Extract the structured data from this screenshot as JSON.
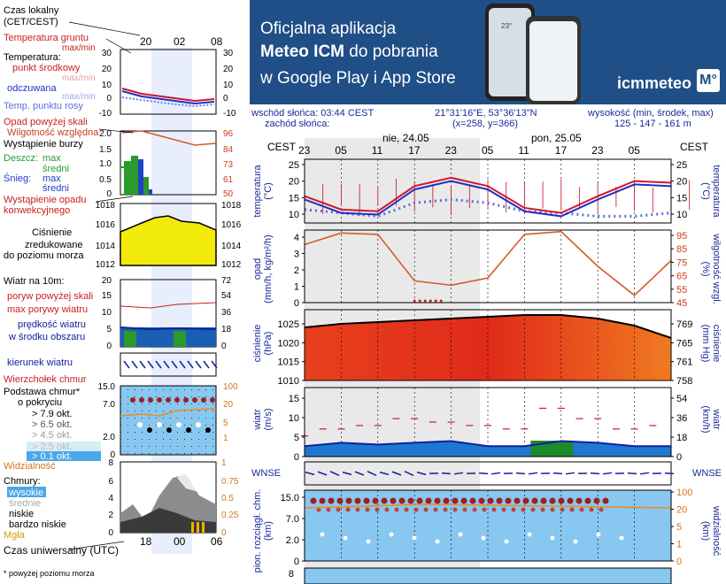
{
  "banner": {
    "line1": "Oficjalna aplikacja",
    "line2_bold": "Meteo ICM",
    "line2_rest": " do pobrania",
    "line3": "w Google Play i App Store",
    "logo": "icmmeteo",
    "logo_mark": "M°",
    "phone_text": "23°"
  },
  "info": {
    "sunrise": "wschód słońca: 03:44 CEST",
    "sunset": "zachód słońca:",
    "coords": "21°31'16\"E, 53°36'13\"N",
    "grid": "(x=258,  y=366)",
    "elevation_label": "wysokość (min, środek, max)",
    "elevation_values": "125 - 147 - 161 m"
  },
  "legend": {
    "local_time": "Czas lokalny",
    "local_time_2": "(CET/CEST)",
    "ground_temp": "Temperatura gruntu",
    "maxmin": "max/min",
    "temperature": "Temperatura:",
    "mid_point": "punkt środkowy",
    "maxmin2": "max/min",
    "felt": "odczuwana",
    "maxmin3": "max/min",
    "dew_point": "Temp. punktu rosy",
    "precip_above": "Opad powyżej skali",
    "humidity": "Wilgotność względna",
    "storm": "Wystąpienie burzy",
    "rain": "Deszcz:",
    "max": "max",
    "mean": "średni",
    "snow": "Śnieg:",
    "max2": "max",
    "mean2": "średni",
    "conv_precip": "Wystąpienie opadu",
    "conv_precip_2": "konwekcyjnego",
    "pressure": "Ciśnienie",
    "pressure_2": "zredukowane",
    "pressure_3": "do poziomu morza",
    "wind": "Wiatr na 10m:",
    "gusts_above": "poryw powyżej skali",
    "max_gusts": "max porywy wiatru",
    "wind_speed": "prędkość wiatru",
    "wind_speed_2": "w środku obszaru",
    "wind_dir": "kierunek wiatru",
    "cloud_top": "Wierzchołek chmur",
    "cloud_base": "Podstawa chmur*",
    "cloud_base_2": "o pokryciu",
    "okt79": "> 7.9 okt.",
    "okt65": "> 6.5 okt.",
    "okt45": "> 4.5 okt.",
    "okt25": "> 2.5 okt.",
    "okt01": "> 0.1 okt.",
    "visibility": "Widzialność",
    "clouds": "Chmury:",
    "high": "wysokie",
    "medium": "średnie",
    "low": "niskie",
    "very_low": "bardzo niskie",
    "fog": "Mgła",
    "utc": "Czas uniwersalny (UTC)",
    "footnote": "* powyżej poziomu morza"
  },
  "left_axes": {
    "top_ticks": [
      "20",
      "02",
      "08"
    ],
    "bottom_ticks": [
      "18",
      "00",
      "06"
    ],
    "temp": [
      "30",
      "20",
      "10",
      "0",
      "-10"
    ],
    "precip": [
      "2.0",
      "1.5",
      "1.0",
      "0.5",
      "0"
    ],
    "humidity": [
      "96",
      "84",
      "73",
      "61",
      "50"
    ],
    "pressure": [
      "1018",
      "1016",
      "1014",
      "1012"
    ],
    "wind_ms": [
      "20",
      "15",
      "10",
      "5",
      "0"
    ],
    "wind_kmh": [
      "72",
      "54",
      "36",
      "18",
      "0"
    ],
    "cloud_km": [
      "15.0",
      "7.0",
      "2.0",
      "0"
    ],
    "vis_km": [
      "100",
      "20",
      "5",
      "1"
    ],
    "cloud_frac_left": [
      "8",
      "6",
      "4",
      "2",
      "0"
    ],
    "cloud_frac_right": [
      "1",
      "0.75",
      "0.5",
      "0.25",
      "0"
    ]
  },
  "right_axes": {
    "cest": "CEST",
    "day1": "nie, 24.05",
    "day2": "pon, 25.05",
    "hours": [
      "23",
      "05",
      "11",
      "17",
      "23",
      "05",
      "11",
      "17",
      "23",
      "05"
    ],
    "temp_label": "temperatura",
    "temp_unit": "(°C)",
    "temp_ticks": [
      "25",
      "20",
      "15",
      "10"
    ],
    "precip_label": "opad",
    "precip_unit": "(mm/h, kg/m²/h)",
    "precip_ticks": [
      "4",
      "3",
      "2",
      "1",
      "0"
    ],
    "hum_label": "wilgotność wzgl.",
    "hum_unit": "(%)",
    "hum_ticks": [
      "95",
      "85",
      "75",
      "65",
      "55",
      "45"
    ],
    "press_label": "ciśnienie",
    "press_unit": "(hPa)",
    "press_unit2": "(mm Hg)",
    "press_ticks": [
      "1025",
      "1020",
      "1015",
      "1010"
    ],
    "press_mmhg_ticks": [
      "769",
      "765",
      "761",
      "758"
    ],
    "wind_label": "wiatr",
    "wind_unit": "(m/s)",
    "wind_unit2": "(km/h)",
    "wind_ticks": [
      "15",
      "10",
      "5",
      "0"
    ],
    "wind_kmh_ticks": [
      "54",
      "36",
      "18",
      "0"
    ],
    "compass": "WNSE",
    "cloud_label": "pion. rozciągł. chm.",
    "cloud_unit": "(km)",
    "vis_label": "widzialność",
    "cloud_ticks": [
      "15.0",
      "7.0",
      "2.0",
      "0"
    ],
    "vis_ticks": [
      "100",
      "20",
      "5",
      "1",
      "0"
    ],
    "bottom_tick": "8"
  },
  "chart_data": [
    {
      "type": "line",
      "name": "temperature",
      "x": [
        0,
        6,
        12,
        18,
        24,
        30,
        36,
        42,
        48,
        54,
        60
      ],
      "series": [
        {
          "name": "punkt środkowy",
          "color": "#d3142a",
          "values": [
            16,
            12,
            11.5,
            19,
            21.5,
            19,
            12.5,
            11,
            16,
            20.5,
            20
          ]
        },
        {
          "name": "odczuwana",
          "color": "#2030c8",
          "values": [
            15,
            11,
            10.5,
            18,
            20.5,
            18,
            11.5,
            10,
            15,
            19.5,
            19
          ]
        },
        {
          "name": "Temp. punktu rosy",
          "color": "#5a6fd8",
          "values": [
            12,
            11,
            10,
            14,
            15,
            14,
            11.5,
            11,
            10,
            10,
            11
          ]
        }
      ],
      "ylim": [
        8,
        27
      ]
    },
    {
      "type": "line",
      "name": "humidity",
      "x": [
        0,
        6,
        12,
        18,
        24,
        30,
        36,
        42,
        48,
        54,
        60
      ],
      "series": [
        {
          "name": "wilgotność",
          "color": "#d8582a",
          "values": [
            85,
            93,
            92,
            60,
            57,
            62,
            92,
            94,
            70,
            50,
            74
          ]
        }
      ],
      "ylim": [
        45,
        95
      ]
    },
    {
      "type": "area",
      "name": "pressure",
      "x": [
        0,
        6,
        12,
        18,
        24,
        30,
        36,
        42,
        48,
        54,
        60
      ],
      "series": [
        {
          "name": "ciśnienie",
          "values": [
            1025,
            1026,
            1026.5,
            1027,
            1027.5,
            1028,
            1028.5,
            1028.5,
            1027.5,
            1025.5,
            1022
          ]
        }
      ],
      "ylim": [
        1010,
        1030
      ]
    },
    {
      "type": "line",
      "name": "wind",
      "x": [
        0,
        6,
        12,
        18,
        24,
        30,
        36,
        42,
        48,
        54,
        60
      ],
      "series": [
        {
          "name": "prędkość wiatru",
          "color": "#2040c8",
          "values": [
            3,
            4,
            3.5,
            4,
            4.5,
            3,
            3,
            4.5,
            4,
            3,
            3
          ]
        },
        {
          "name": "max porywy wiatru",
          "color": "#c81e1e",
          "values": [
            6,
            8,
            9,
            11,
            10,
            9,
            8,
            14,
            11,
            8,
            9
          ]
        }
      ],
      "ylim": [
        0,
        20
      ]
    }
  ]
}
